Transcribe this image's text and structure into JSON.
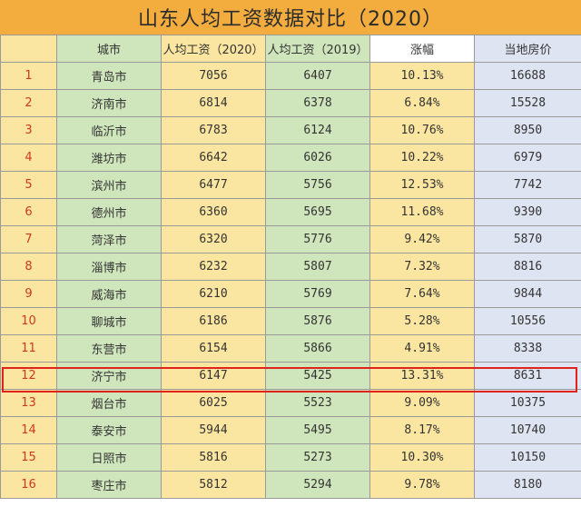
{
  "title": "山东人均工资数据对比（2020）",
  "columns": [
    "",
    "城市",
    "人均工资（2020）",
    "人均工资（2019）",
    "涨幅",
    "当地房价"
  ],
  "rows": [
    {
      "rank": "1",
      "city": "青岛市",
      "wage2020": "7056",
      "wage2019": "6407",
      "rise": "10.13%",
      "house": "16688"
    },
    {
      "rank": "2",
      "city": "济南市",
      "wage2020": "6814",
      "wage2019": "6378",
      "rise": "6.84%",
      "house": "15528"
    },
    {
      "rank": "3",
      "city": "临沂市",
      "wage2020": "6783",
      "wage2019": "6124",
      "rise": "10.76%",
      "house": "8950"
    },
    {
      "rank": "4",
      "city": "潍坊市",
      "wage2020": "6642",
      "wage2019": "6026",
      "rise": "10.22%",
      "house": "6979"
    },
    {
      "rank": "5",
      "city": "滨州市",
      "wage2020": "6477",
      "wage2019": "5756",
      "rise": "12.53%",
      "house": "7742"
    },
    {
      "rank": "6",
      "city": "德州市",
      "wage2020": "6360",
      "wage2019": "5695",
      "rise": "11.68%",
      "house": "9390"
    },
    {
      "rank": "7",
      "city": "菏泽市",
      "wage2020": "6320",
      "wage2019": "5776",
      "rise": "9.42%",
      "house": "5870"
    },
    {
      "rank": "8",
      "city": "淄博市",
      "wage2020": "6232",
      "wage2019": "5807",
      "rise": "7.32%",
      "house": "8816"
    },
    {
      "rank": "9",
      "city": "威海市",
      "wage2020": "6210",
      "wage2019": "5769",
      "rise": "7.64%",
      "house": "9844"
    },
    {
      "rank": "10",
      "city": "聊城市",
      "wage2020": "6186",
      "wage2019": "5876",
      "rise": "5.28%",
      "house": "10556"
    },
    {
      "rank": "11",
      "city": "东营市",
      "wage2020": "6154",
      "wage2019": "5866",
      "rise": "4.91%",
      "house": "8338"
    },
    {
      "rank": "12",
      "city": "济宁市",
      "wage2020": "6147",
      "wage2019": "5425",
      "rise": "13.31%",
      "house": "8631"
    },
    {
      "rank": "13",
      "city": "烟台市",
      "wage2020": "6025",
      "wage2019": "5523",
      "rise": "9.09%",
      "house": "10375"
    },
    {
      "rank": "14",
      "city": "泰安市",
      "wage2020": "5944",
      "wage2019": "5495",
      "rise": "8.17%",
      "house": "10740"
    },
    {
      "rank": "15",
      "city": "日照市",
      "wage2020": "5816",
      "wage2019": "5273",
      "rise": "10.30%",
      "house": "10150"
    },
    {
      "rank": "16",
      "city": "枣庄市",
      "wage2020": "5812",
      "wage2019": "5294",
      "rise": "9.78%",
      "house": "8180"
    }
  ],
  "highlighted_rank": "12",
  "colors": {
    "title_bg": "#f3ad3e",
    "highlight_border": "#e0241b",
    "rank_text": "#d0391c"
  }
}
